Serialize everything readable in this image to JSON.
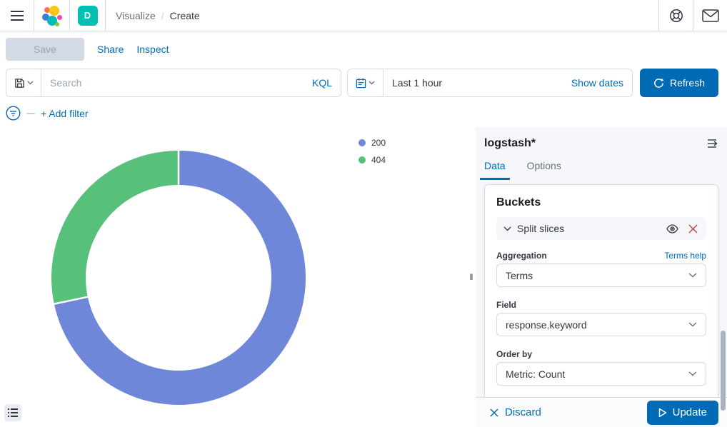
{
  "colors": {
    "primary": "#006BB4",
    "danger": "#D13B3B",
    "space_avatar": "#00BFB3",
    "slice_200": "#6F87D8",
    "slice_404": "#57C17B"
  },
  "icons": {
    "menu": "hamburger-icon",
    "logo": "elastic-logo",
    "help": "help-icon",
    "mail": "mail-icon",
    "saved_query": "save-disk-icon",
    "calendar": "calendar-icon",
    "refresh": "refresh-icon",
    "filter": "filter-circle-icon",
    "collapse": "collapse-panel-icon",
    "eye": "eye-icon",
    "remove": "close-icon",
    "play": "play-icon",
    "legend_toggle": "list-icon",
    "resizer": "drag-handle-icon"
  },
  "header": {
    "space_initial": "D",
    "breadcrumb": {
      "parent": "Visualize",
      "separator": "/",
      "current": "Create"
    }
  },
  "toolbar": {
    "save_label": "Save",
    "share_label": "Share",
    "inspect_label": "Inspect"
  },
  "query_bar": {
    "search_placeholder": "Search",
    "kql_label": "KQL",
    "time_value": "Last 1 hour",
    "show_dates_label": "Show dates",
    "refresh_label": "Refresh"
  },
  "filter_bar": {
    "add_filter_label": "+ Add filter"
  },
  "chart_data": {
    "type": "pie",
    "donut": true,
    "legend_position": "top-right",
    "slices": [
      {
        "label": "200",
        "percent": 71.7,
        "color": "#6F87D8"
      },
      {
        "label": "404",
        "percent": 28.3,
        "color": "#57C17B"
      }
    ]
  },
  "sidebar": {
    "index_pattern": "logstash*",
    "tabs": [
      {
        "label": "Data",
        "active": true
      },
      {
        "label": "Options",
        "active": false
      }
    ],
    "buckets": {
      "heading": "Buckets",
      "accordion_label": "Split slices",
      "aggregation_label": "Aggregation",
      "aggregation_help": "Terms help",
      "aggregation_value": "Terms",
      "field_label": "Field",
      "field_value": "response.keyword",
      "order_by_label": "Order by",
      "order_by_value": "Metric: Count"
    },
    "footer": {
      "discard_label": "Discard",
      "update_label": "Update"
    }
  }
}
